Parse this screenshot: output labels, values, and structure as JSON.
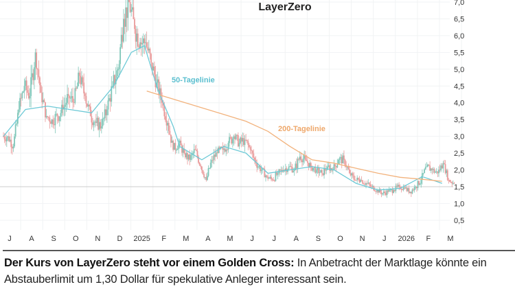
{
  "chart_data": {
    "type": "candlestick",
    "title": "LayerZero",
    "y_ticks": [
      "7,0",
      "6,5",
      "6,0",
      "5,5",
      "5,0",
      "4,5",
      "4,0",
      "3,5",
      "3,0",
      "2,5",
      "2,0",
      "1,5",
      "1,0",
      "0,5"
    ],
    "ylim": [
      0.4,
      7.05
    ],
    "x_ticks": [
      "J",
      "A",
      "S",
      "O",
      "N",
      "D",
      "2025",
      "F",
      "M",
      "A",
      "M",
      "J",
      "J",
      "A",
      "S",
      "O",
      "N",
      "J",
      "2026",
      "F",
      "M"
    ],
    "weekly_close": [
      3.0,
      2.7,
      3.8,
      4.5,
      4.2,
      5.5,
      4.3,
      3.6,
      3.5,
      3.6,
      3.8,
      4.2,
      4.0,
      4.8,
      4.2,
      3.6,
      3.4,
      3.3,
      3.8,
      4.5,
      5.0,
      6.5,
      7.0,
      6.2,
      5.8,
      5.8,
      5.2,
      4.6,
      4.0,
      3.4,
      2.6,
      2.8,
      2.5,
      2.3,
      2.6,
      2.1,
      1.7,
      2.3,
      2.5,
      2.6,
      2.8,
      3.0,
      2.8,
      2.9,
      2.6,
      2.2,
      2.0,
      1.8,
      1.7,
      1.9,
      2.0,
      2.1,
      2.0,
      2.4,
      2.3,
      2.1,
      2.0,
      1.9,
      2.1,
      2.0,
      2.3,
      2.3,
      1.9,
      1.7,
      1.7,
      1.6,
      1.5,
      1.4,
      1.3,
      1.35,
      1.4,
      1.5,
      1.45,
      1.35,
      1.5,
      1.7,
      2.1,
      2.0,
      1.9,
      2.2,
      1.7,
      1.6
    ],
    "series": [
      {
        "name": "50-Tagelinie",
        "color": "#6cc9d6",
        "points": [
          [
            0,
            3.0
          ],
          [
            1,
            3.8
          ],
          [
            2,
            3.9
          ],
          [
            3,
            3.8
          ],
          [
            4,
            3.7
          ],
          [
            5,
            4.5
          ],
          [
            5.8,
            5.5
          ],
          [
            6.4,
            5.7
          ],
          [
            7,
            4.4
          ],
          [
            7.7,
            3.3
          ],
          [
            8,
            2.7
          ],
          [
            9,
            2.3
          ],
          [
            10,
            2.7
          ],
          [
            11,
            2.5
          ],
          [
            12,
            1.9
          ],
          [
            13,
            2.0
          ],
          [
            14,
            2.1
          ],
          [
            15,
            2.0
          ],
          [
            16,
            1.6
          ],
          [
            17,
            1.4
          ],
          [
            18,
            1.45
          ],
          [
            19,
            1.8
          ],
          [
            19.9,
            1.6
          ]
        ]
      },
      {
        "name": "200-Tagelinie",
        "color": "#f2b27c",
        "points": [
          [
            6.5,
            4.35
          ],
          [
            7,
            4.25
          ],
          [
            8,
            4.05
          ],
          [
            9,
            3.85
          ],
          [
            10,
            3.65
          ],
          [
            11,
            3.45
          ],
          [
            12,
            3.15
          ],
          [
            13,
            2.7
          ],
          [
            14,
            2.3
          ],
          [
            15,
            2.2
          ],
          [
            16,
            2.05
          ],
          [
            17,
            1.9
          ],
          [
            18,
            1.78
          ],
          [
            19,
            1.72
          ],
          [
            19.9,
            1.66
          ]
        ]
      }
    ],
    "reference_line": 1.5,
    "up_color": "#7fc6b8",
    "down_color": "#e99a9a"
  },
  "caption": {
    "bold": "Der Kurs von LayerZero steht vor einem Golden Cross:",
    "text": " In Anbetracht der Marktlage könnte ein Abstauberlimit um 1,30 Dollar für spekulative Anleger interessant sein."
  }
}
